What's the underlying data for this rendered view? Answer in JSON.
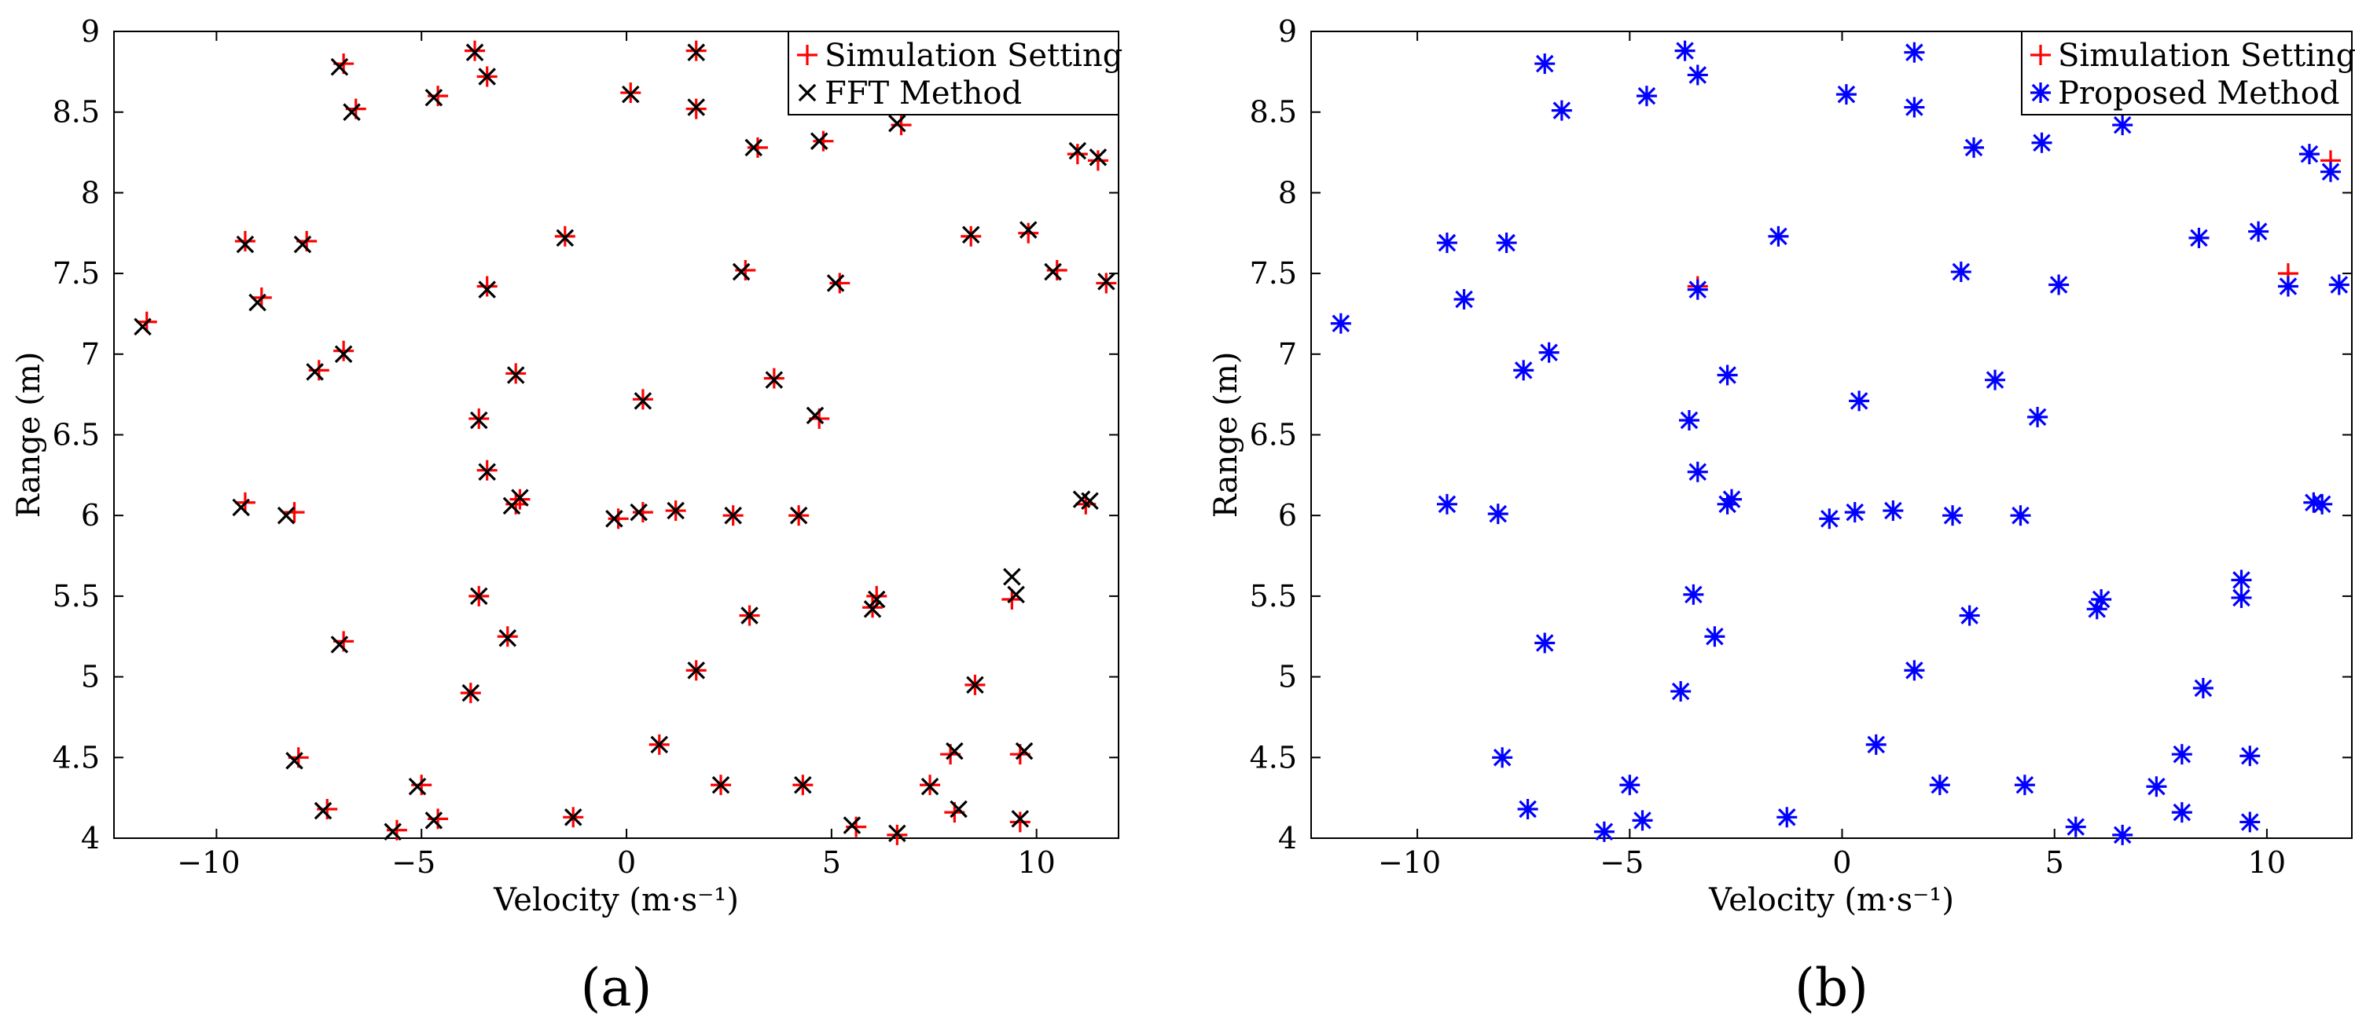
{
  "chart_data": [
    {
      "type": "scatter",
      "panel_label": "(a)",
      "xlabel": "Velocity (m·s⁻¹)",
      "ylabel": "Range (m)",
      "xlim": [
        -12.5,
        12
      ],
      "ylim": [
        4,
        9
      ],
      "xticks": [
        -10,
        -5,
        0,
        5,
        10
      ],
      "yticks": [
        4,
        4.5,
        5,
        5.5,
        6,
        6.5,
        7,
        7.5,
        8,
        8.5,
        9
      ],
      "grid": false,
      "legend_position": "top-right",
      "series": [
        {
          "name": "Simulation Setting",
          "marker": "plus",
          "color": "#ff0000",
          "points": [
            [
              -11.7,
              7.2
            ],
            [
              -9.3,
              7.7
            ],
            [
              -9.3,
              6.08
            ],
            [
              -8.9,
              7.35
            ],
            [
              -8.1,
              6.02
            ],
            [
              -8.0,
              4.5
            ],
            [
              -7.8,
              7.7
            ],
            [
              -7.5,
              6.9
            ],
            [
              -7.3,
              4.18
            ],
            [
              -6.9,
              8.8
            ],
            [
              -6.9,
              7.02
            ],
            [
              -6.9,
              5.22
            ],
            [
              -6.6,
              8.52
            ],
            [
              -5.6,
              4.05
            ],
            [
              -5.0,
              4.33
            ],
            [
              -4.6,
              4.12
            ],
            [
              -4.6,
              8.6
            ],
            [
              -3.7,
              8.88
            ],
            [
              -3.6,
              6.6
            ],
            [
              -3.6,
              5.5
            ],
            [
              -3.8,
              4.9
            ],
            [
              -3.4,
              8.72
            ],
            [
              -3.4,
              7.42
            ],
            [
              -3.4,
              6.28
            ],
            [
              -2.9,
              5.25
            ],
            [
              -2.7,
              6.88
            ],
            [
              -2.6,
              6.1
            ],
            [
              -2.7,
              6.07
            ],
            [
              -1.5,
              7.73
            ],
            [
              -1.3,
              4.13
            ],
            [
              -0.2,
              5.98
            ],
            [
              0.1,
              8.62
            ],
            [
              0.4,
              6.72
            ],
            [
              0.4,
              6.02
            ],
            [
              0.8,
              4.58
            ],
            [
              1.2,
              6.03
            ],
            [
              1.7,
              8.88
            ],
            [
              1.7,
              8.52
            ],
            [
              1.7,
              5.04
            ],
            [
              2.3,
              4.33
            ],
            [
              2.6,
              6.0
            ],
            [
              2.9,
              7.52
            ],
            [
              3.0,
              5.38
            ],
            [
              3.2,
              8.28
            ],
            [
              3.6,
              6.85
            ],
            [
              4.2,
              6.0
            ],
            [
              4.3,
              4.33
            ],
            [
              4.7,
              6.6
            ],
            [
              4.8,
              8.32
            ],
            [
              5.2,
              7.44
            ],
            [
              5.6,
              4.07
            ],
            [
              6.0,
              5.43
            ],
            [
              6.1,
              5.5
            ],
            [
              6.7,
              8.42
            ],
            [
              6.6,
              4.02
            ],
            [
              7.4,
              4.33
            ],
            [
              7.9,
              4.52
            ],
            [
              8.0,
              4.16
            ],
            [
              8.4,
              7.73
            ],
            [
              8.5,
              4.95
            ],
            [
              9.4,
              5.48
            ],
            [
              9.6,
              4.52
            ],
            [
              9.6,
              4.1
            ],
            [
              9.8,
              7.75
            ],
            [
              10.5,
              7.52
            ],
            [
              11.0,
              8.24
            ],
            [
              11.2,
              6.07
            ],
            [
              11.5,
              8.2
            ],
            [
              11.7,
              7.44
            ]
          ]
        },
        {
          "name": "FFT Method",
          "marker": "x",
          "color": "#000000",
          "points": [
            [
              -11.8,
              7.17
            ],
            [
              -9.3,
              7.68
            ],
            [
              -9.4,
              6.05
            ],
            [
              -9.0,
              7.32
            ],
            [
              -8.3,
              6.0
            ],
            [
              -8.1,
              4.48
            ],
            [
              -7.9,
              7.68
            ],
            [
              -7.6,
              6.89
            ],
            [
              -7.4,
              4.17
            ],
            [
              -7.0,
              8.78
            ],
            [
              -6.9,
              7.0
            ],
            [
              -7.0,
              5.2
            ],
            [
              -6.7,
              8.5
            ],
            [
              -5.7,
              4.04
            ],
            [
              -5.1,
              4.32
            ],
            [
              -4.7,
              4.11
            ],
            [
              -4.7,
              8.59
            ],
            [
              -3.7,
              8.87
            ],
            [
              -3.6,
              6.59
            ],
            [
              -3.6,
              5.5
            ],
            [
              -3.8,
              4.9
            ],
            [
              -3.4,
              8.72
            ],
            [
              -3.4,
              7.4
            ],
            [
              -3.4,
              6.27
            ],
            [
              -2.9,
              5.24
            ],
            [
              -2.7,
              6.87
            ],
            [
              -2.6,
              6.11
            ],
            [
              -2.8,
              6.06
            ],
            [
              -1.5,
              7.72
            ],
            [
              -1.3,
              4.13
            ],
            [
              -0.3,
              5.98
            ],
            [
              0.1,
              8.61
            ],
            [
              0.4,
              6.71
            ],
            [
              0.3,
              6.02
            ],
            [
              0.8,
              4.58
            ],
            [
              1.2,
              6.03
            ],
            [
              1.7,
              8.87
            ],
            [
              1.7,
              8.53
            ],
            [
              1.7,
              5.04
            ],
            [
              2.3,
              4.33
            ],
            [
              2.6,
              6.0
            ],
            [
              2.8,
              7.51
            ],
            [
              3.0,
              5.38
            ],
            [
              3.1,
              8.28
            ],
            [
              3.6,
              6.84
            ],
            [
              4.2,
              6.0
            ],
            [
              4.3,
              4.33
            ],
            [
              4.6,
              6.62
            ],
            [
              4.7,
              8.32
            ],
            [
              5.1,
              7.44
            ],
            [
              5.5,
              4.08
            ],
            [
              6.0,
              5.42
            ],
            [
              6.1,
              5.48
            ],
            [
              6.6,
              8.43
            ],
            [
              6.6,
              4.03
            ],
            [
              7.4,
              4.32
            ],
            [
              8.0,
              4.54
            ],
            [
              8.1,
              4.18
            ],
            [
              8.4,
              7.74
            ],
            [
              8.5,
              4.95
            ],
            [
              9.4,
              5.62
            ],
            [
              9.5,
              5.51
            ],
            [
              9.7,
              4.54
            ],
            [
              9.6,
              4.12
            ],
            [
              9.8,
              7.77
            ],
            [
              10.4,
              7.51
            ],
            [
              11.0,
              8.26
            ],
            [
              11.1,
              6.1
            ],
            [
              11.3,
              6.09
            ],
            [
              11.5,
              8.22
            ],
            [
              11.7,
              7.45
            ]
          ]
        }
      ]
    },
    {
      "type": "scatter",
      "panel_label": "(b)",
      "xlabel": "Velocity (m·s⁻¹)",
      "ylabel": "Range (m)",
      "xlim": [
        -12.5,
        12
      ],
      "ylim": [
        4,
        9
      ],
      "xticks": [
        -10,
        -5,
        0,
        5,
        10
      ],
      "yticks": [
        4,
        4.5,
        5,
        5.5,
        6,
        6.5,
        7,
        7.5,
        8,
        8.5,
        9
      ],
      "grid": false,
      "legend_position": "top-right",
      "series": [
        {
          "name": "Simulation Setting",
          "marker": "plus",
          "color": "#ff0000",
          "points": [
            [
              10.5,
              7.5
            ],
            [
              11.5,
              8.2
            ],
            [
              -3.4,
              7.42
            ]
          ]
        },
        {
          "name": "Proposed Method",
          "marker": "asterisk",
          "color": "#0000ff",
          "points": [
            [
              -11.8,
              7.19
            ],
            [
              -9.3,
              7.69
            ],
            [
              -9.3,
              6.07
            ],
            [
              -8.9,
              7.34
            ],
            [
              -8.1,
              6.01
            ],
            [
              -8.0,
              4.5
            ],
            [
              -7.9,
              7.69
            ],
            [
              -7.5,
              6.9
            ],
            [
              -7.4,
              4.18
            ],
            [
              -7.0,
              8.8
            ],
            [
              -6.9,
              7.01
            ],
            [
              -7.0,
              5.21
            ],
            [
              -6.6,
              8.51
            ],
            [
              -5.6,
              4.04
            ],
            [
              -5.0,
              4.33
            ],
            [
              -4.7,
              4.11
            ],
            [
              -4.6,
              8.6
            ],
            [
              -3.7,
              8.88
            ],
            [
              -3.6,
              6.59
            ],
            [
              -3.5,
              5.51
            ],
            [
              -3.8,
              4.91
            ],
            [
              -3.4,
              8.73
            ],
            [
              -3.4,
              7.4
            ],
            [
              -3.4,
              6.27
            ],
            [
              -3.0,
              5.25
            ],
            [
              -2.7,
              6.87
            ],
            [
              -2.6,
              6.1
            ],
            [
              -2.7,
              6.07
            ],
            [
              -1.5,
              7.73
            ],
            [
              -1.3,
              4.13
            ],
            [
              -0.3,
              5.98
            ],
            [
              0.1,
              8.61
            ],
            [
              0.4,
              6.71
            ],
            [
              0.3,
              6.02
            ],
            [
              0.8,
              4.58
            ],
            [
              1.2,
              6.03
            ],
            [
              1.7,
              8.87
            ],
            [
              1.7,
              8.53
            ],
            [
              1.7,
              5.04
            ],
            [
              2.3,
              4.33
            ],
            [
              2.6,
              6.0
            ],
            [
              2.8,
              7.51
            ],
            [
              3.0,
              5.38
            ],
            [
              3.1,
              8.28
            ],
            [
              3.6,
              6.84
            ],
            [
              4.2,
              6.0
            ],
            [
              4.3,
              4.33
            ],
            [
              4.6,
              6.61
            ],
            [
              4.7,
              8.31
            ],
            [
              5.1,
              7.43
            ],
            [
              5.5,
              4.07
            ],
            [
              6.0,
              5.42
            ],
            [
              6.1,
              5.48
            ],
            [
              6.6,
              8.42
            ],
            [
              6.6,
              4.02
            ],
            [
              7.4,
              4.32
            ],
            [
              8.0,
              4.52
            ],
            [
              8.0,
              4.16
            ],
            [
              8.4,
              7.72
            ],
            [
              8.5,
              4.93
            ],
            [
              9.4,
              5.6
            ],
            [
              9.4,
              5.49
            ],
            [
              9.6,
              4.51
            ],
            [
              9.6,
              4.1
            ],
            [
              9.8,
              7.76
            ],
            [
              10.5,
              7.42
            ],
            [
              11.0,
              8.24
            ],
            [
              11.1,
              6.08
            ],
            [
              11.3,
              6.07
            ],
            [
              11.5,
              8.13
            ],
            [
              11.7,
              7.43
            ]
          ]
        }
      ]
    }
  ]
}
